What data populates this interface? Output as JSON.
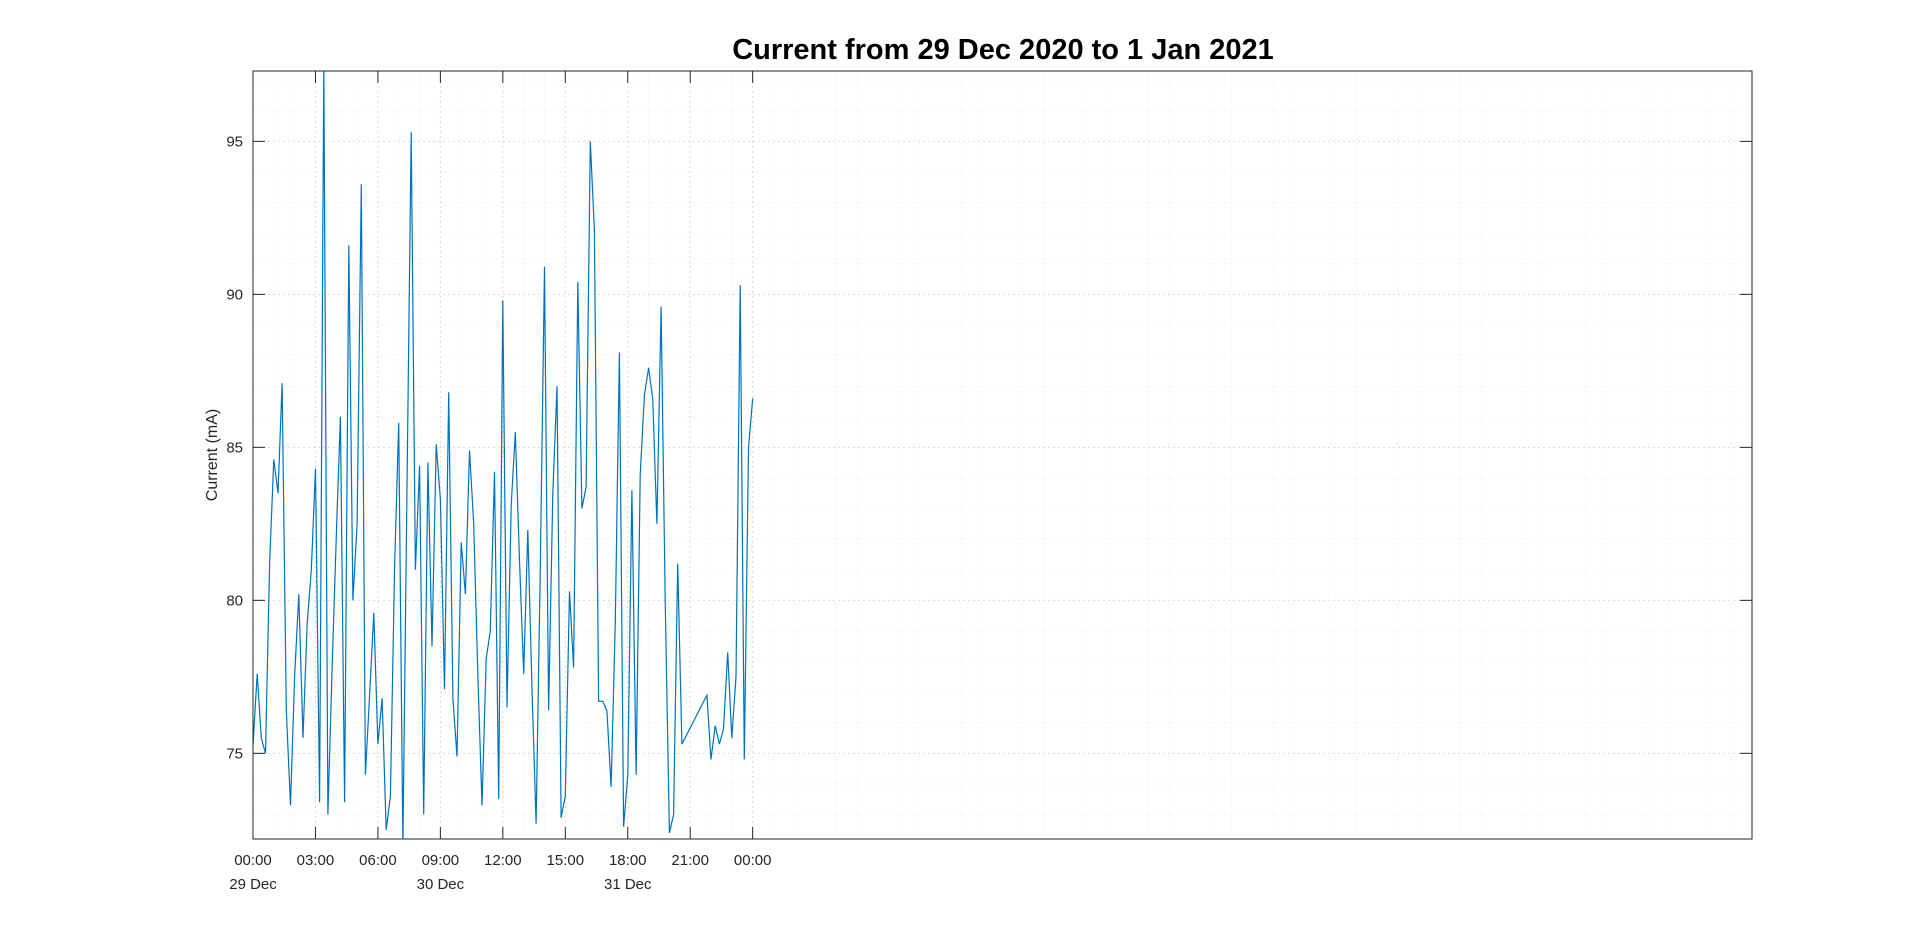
{
  "chart_data": {
    "type": "line",
    "title": "Current from  29 Dec 2020 to 1 Jan 2021",
    "xlabel": "",
    "ylabel": "Current (mA)",
    "ylim": [
      72.2,
      97.3
    ],
    "xlim": [
      "2020-12-29 00:00",
      "2021-01-01 00:00"
    ],
    "grid": true,
    "colors": {
      "series": "#0072BD",
      "axis": "#262626",
      "grid": "#d9d9d9"
    },
    "y_ticks": [
      75,
      80,
      85,
      90,
      95
    ],
    "y_tick_labels": [
      "75",
      "80",
      "85",
      "90",
      "95"
    ],
    "x_ticks": [
      {
        "t": "2020-12-29 00:00",
        "label": "00:00",
        "date": "29 Dec"
      },
      {
        "t": "2020-12-29 03:00",
        "label": "03:00",
        "date": ""
      },
      {
        "t": "2020-12-29 06:00",
        "label": "06:00",
        "date": ""
      },
      {
        "t": "2020-12-29 09:00",
        "label": "09:00",
        "date": "30 Dec"
      },
      {
        "t": "2020-12-29 12:00",
        "label": "12:00",
        "date": ""
      },
      {
        "t": "2020-12-29 15:00",
        "label": "15:00",
        "date": ""
      },
      {
        "t": "2020-12-29 18:00",
        "label": "18:00",
        "date": "31 Dec"
      },
      {
        "t": "2020-12-29 21:00",
        "label": "21:00",
        "date": ""
      },
      {
        "t": "2020-12-30 00:00",
        "label": "00:00",
        "date": ""
      }
    ],
    "series": [
      {
        "x": [
          "2020-12-28 23:50",
          "2020-12-29 00:12",
          "2020-12-29 00:24",
          "2020-12-29 00:36",
          "2020-12-29 00:48",
          "2020-12-29 01:00",
          "2020-12-29 01:12",
          "2020-12-29 01:24",
          "2020-12-29 01:36",
          "2020-12-29 01:48",
          "2020-12-29 02:00",
          "2020-12-29 02:12",
          "2020-12-29 02:24",
          "2020-12-29 02:36",
          "2020-12-29 02:48",
          "2020-12-29 03:00",
          "2020-12-29 03:12",
          "2020-12-29 03:24",
          "2020-12-29 03:36",
          "2020-12-29 03:48",
          "2020-12-29 04:00",
          "2020-12-29 04:12",
          "2020-12-29 04:24",
          "2020-12-29 04:36",
          "2020-12-29 04:48",
          "2020-12-29 05:00",
          "2020-12-29 05:12",
          "2020-12-29 05:24",
          "2020-12-29 05:36",
          "2020-12-29 05:48",
          "2020-12-29 06:00",
          "2020-12-29 06:12",
          "2020-12-29 06:24",
          "2020-12-29 06:36",
          "2020-12-29 06:48",
          "2020-12-29 07:00",
          "2020-12-29 07:12",
          "2020-12-29 07:24",
          "2020-12-29 07:36",
          "2020-12-29 07:48",
          "2020-12-29 08:00",
          "2020-12-29 08:12",
          "2020-12-29 08:24",
          "2020-12-29 08:36",
          "2020-12-29 08:48",
          "2020-12-29 09:00",
          "2020-12-29 09:12",
          "2020-12-29 09:24",
          "2020-12-29 09:36",
          "2020-12-29 09:48",
          "2020-12-29 10:00",
          "2020-12-29 10:12",
          "2020-12-29 10:24",
          "2020-12-29 10:36",
          "2020-12-29 10:48",
          "2020-12-29 11:00",
          "2020-12-29 11:12",
          "2020-12-29 11:24",
          "2020-12-29 11:36",
          "2020-12-29 11:48",
          "2020-12-29 12:00",
          "2020-12-29 12:12",
          "2020-12-29 12:24",
          "2020-12-29 12:36",
          "2020-12-29 12:48",
          "2020-12-29 13:00",
          "2020-12-29 13:12",
          "2020-12-29 13:24",
          "2020-12-29 13:36",
          "2020-12-29 13:48",
          "2020-12-29 14:00",
          "2020-12-29 14:12",
          "2020-12-29 14:24",
          "2020-12-29 14:36",
          "2020-12-29 14:48",
          "2020-12-29 15:00",
          "2020-12-29 15:12",
          "2020-12-29 15:24",
          "2020-12-29 15:36",
          "2020-12-29 15:48",
          "2020-12-29 16:00",
          "2020-12-29 16:12",
          "2020-12-29 16:24",
          "2020-12-29 16:36",
          "2020-12-29 16:48",
          "2020-12-29 17:00",
          "2020-12-29 17:12",
          "2020-12-29 17:24",
          "2020-12-29 17:36",
          "2020-12-29 17:48",
          "2020-12-29 18:00",
          "2020-12-29 18:12",
          "2020-12-29 18:24",
          "2020-12-29 18:36",
          "2020-12-29 18:48",
          "2020-12-29 19:00",
          "2020-12-29 19:12",
          "2020-12-29 19:24",
          "2020-12-29 19:36",
          "2020-12-29 19:48",
          "2020-12-29 20:00",
          "2020-12-29 20:12",
          "2020-12-29 20:24",
          "2020-12-29 20:36",
          "2020-12-29 21:48",
          "2020-12-29 22:00",
          "2020-12-29 22:12",
          "2020-12-29 22:24",
          "2020-12-29 22:36",
          "2020-12-29 22:48",
          "2020-12-29 23:00",
          "2020-12-29 23:12",
          "2020-12-29 23:24",
          "2020-12-29 23:36",
          "2020-12-29 23:48",
          "2020-12-30 00:00"
        ],
        "values": [
          73.3,
          77.6,
          75.5,
          75.0,
          81.3,
          84.6,
          83.5,
          87.1,
          76.4,
          73.3,
          77.5,
          80.2,
          75.5,
          79.2,
          81.0,
          84.3,
          73.4,
          97.5,
          73.0,
          77.8,
          82.1,
          86.0,
          73.4,
          91.6,
          80.0,
          82.5,
          93.6,
          74.3,
          76.9,
          79.6,
          75.3,
          76.8,
          72.5,
          73.6,
          81.1,
          85.8,
          72.0,
          84.0,
          95.3,
          81.0,
          84.4,
          73.0,
          84.5,
          78.5,
          85.1,
          83.3,
          77.1,
          86.8,
          76.8,
          74.9,
          81.9,
          80.2,
          84.9,
          82.5,
          77.5,
          73.3,
          78.1,
          79.0,
          84.2,
          73.5,
          89.8,
          76.5,
          83.1,
          85.5,
          81.3,
          77.6,
          82.3,
          77.1,
          72.7,
          81.1,
          90.9,
          76.4,
          83.5,
          87.0,
          72.9,
          73.6,
          80.3,
          77.8,
          90.4,
          83.0,
          83.7,
          95.0,
          92.1,
          76.7,
          76.7,
          76.4,
          73.9,
          79.3,
          88.1,
          72.6,
          74.3,
          83.6,
          74.3,
          84.1,
          86.7,
          87.6,
          86.6,
          82.5,
          89.6,
          80.0,
          72.4,
          73.0,
          81.2,
          75.3,
          76.9,
          74.8,
          75.9,
          75.3,
          75.8,
          78.3,
          75.5,
          77.5,
          90.3,
          74.8,
          85.0,
          86.6
        ]
      }
    ]
  }
}
